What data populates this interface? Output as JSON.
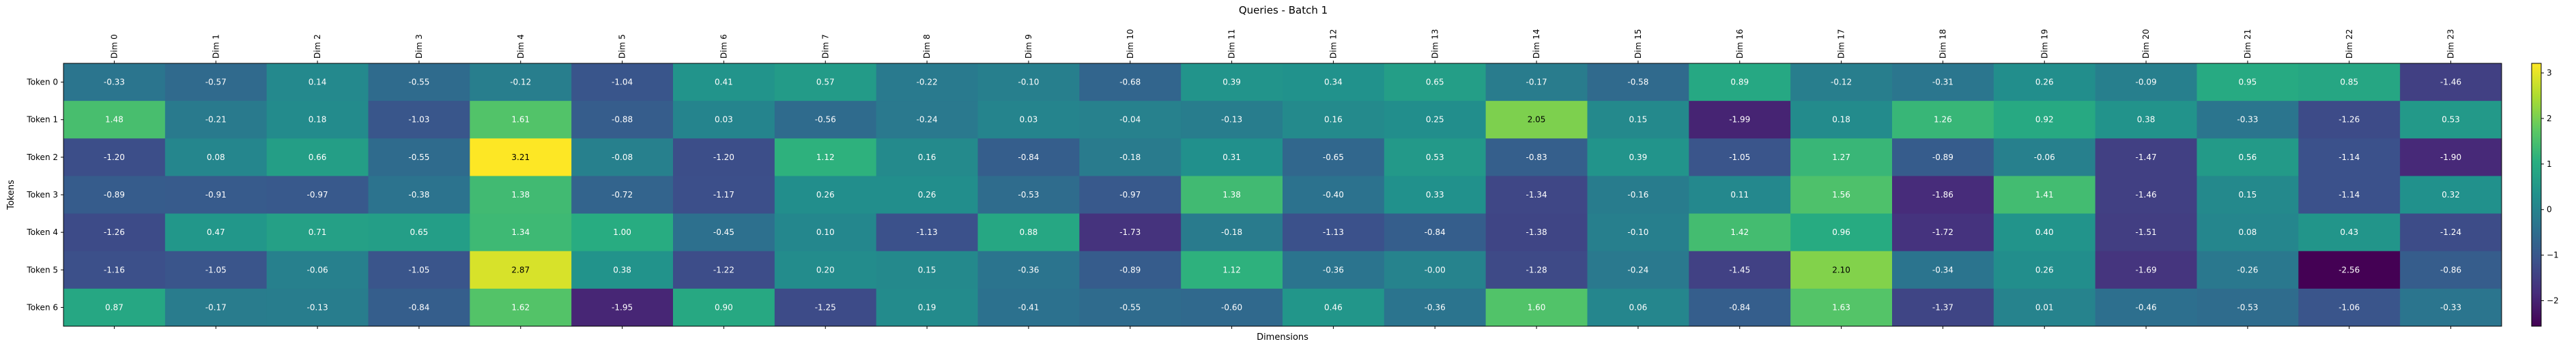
{
  "chart_data": {
    "type": "heatmap",
    "title": "Queries - Batch 1",
    "xlabel": "Dimensions",
    "ylabel": "Tokens",
    "colormap": "viridis",
    "colorbar": {
      "min": -2.56,
      "max": 3.21,
      "ticks": [
        -2,
        -1,
        0,
        1,
        2,
        3
      ]
    },
    "x_categories": [
      "Dim 0",
      "Dim 1",
      "Dim 2",
      "Dim 3",
      "Dim 4",
      "Dim 5",
      "Dim 6",
      "Dim 7",
      "Dim 8",
      "Dim 9",
      "Dim 10",
      "Dim 11",
      "Dim 12",
      "Dim 13",
      "Dim 14",
      "Dim 15",
      "Dim 16",
      "Dim 17",
      "Dim 18",
      "Dim 19",
      "Dim 20",
      "Dim 21",
      "Dim 22",
      "Dim 23"
    ],
    "y_categories": [
      "Token 0",
      "Token 1",
      "Token 2",
      "Token 3",
      "Token 4",
      "Token 5",
      "Token 6"
    ],
    "values": [
      [
        -0.33,
        -0.57,
        0.14,
        -0.55,
        -0.12,
        -1.04,
        0.41,
        0.57,
        -0.22,
        -0.1,
        -0.68,
        0.39,
        0.34,
        0.65,
        -0.17,
        -0.58,
        0.89,
        -0.12,
        -0.31,
        0.26,
        -0.09,
        0.95,
        0.85,
        -1.46
      ],
      [
        1.48,
        -0.21,
        0.18,
        -1.03,
        1.61,
        -0.88,
        0.03,
        -0.56,
        -0.24,
        0.03,
        -0.04,
        -0.13,
        0.16,
        0.25,
        2.05,
        0.15,
        -1.99,
        0.18,
        1.26,
        0.92,
        0.38,
        -0.33,
        -1.26,
        0.53
      ],
      [
        -1.2,
        0.08,
        0.66,
        -0.55,
        3.21,
        -0.08,
        -1.2,
        1.12,
        0.16,
        -0.84,
        -0.18,
        0.31,
        -0.65,
        0.53,
        -0.83,
        0.39,
        -1.05,
        1.27,
        -0.89,
        -0.06,
        -1.47,
        0.56,
        -1.14,
        -1.9
      ],
      [
        -0.89,
        -0.91,
        -0.97,
        -0.38,
        1.38,
        -0.72,
        -1.17,
        0.26,
        0.26,
        -0.53,
        -0.97,
        1.38,
        -0.4,
        0.33,
        -1.34,
        -0.16,
        0.11,
        1.56,
        -1.86,
        1.41,
        -1.46,
        0.15,
        -1.14,
        0.32
      ],
      [
        -1.26,
        0.47,
        0.71,
        0.65,
        1.34,
        1.0,
        -0.45,
        0.1,
        -1.13,
        0.88,
        -1.73,
        -0.18,
        -1.13,
        -0.84,
        -1.38,
        -0.1,
        1.42,
        0.96,
        -1.72,
        0.4,
        -1.51,
        0.08,
        0.43,
        -1.24
      ],
      [
        -1.16,
        -1.05,
        -0.06,
        -1.05,
        2.87,
        0.38,
        -1.22,
        0.2,
        0.15,
        -0.36,
        -0.89,
        1.12,
        -0.36,
        -0.0,
        -1.28,
        -0.24,
        -1.45,
        2.1,
        -0.34,
        0.26,
        -1.69,
        -0.26,
        -2.56,
        -0.86
      ],
      [
        0.87,
        -0.17,
        -0.13,
        -0.84,
        1.62,
        -1.95,
        0.9,
        -1.25,
        0.19,
        -0.41,
        -0.55,
        -0.6,
        0.46,
        -0.36,
        1.6,
        0.06,
        -0.84,
        1.63,
        -1.37,
        0.01,
        -0.46,
        -0.53,
        -1.06,
        -0.33
      ]
    ],
    "value_labels": [
      [
        "-0.33",
        "-0.57",
        "0.14",
        "-0.55",
        "-0.12",
        "-1.04",
        "0.41",
        "0.57",
        "-0.22",
        "-0.10",
        "-0.68",
        "0.39",
        "0.34",
        "0.65",
        "-0.17",
        "-0.58",
        "0.89",
        "-0.12",
        "-0.31",
        "0.26",
        "-0.09",
        "0.95",
        "0.85",
        "-1.46"
      ],
      [
        "1.48",
        "-0.21",
        "0.18",
        "-1.03",
        "1.61",
        "-0.88",
        "0.03",
        "-0.56",
        "-0.24",
        "0.03",
        "-0.04",
        "-0.13",
        "0.16",
        "0.25",
        "2.05",
        "0.15",
        "-1.99",
        "0.18",
        "1.26",
        "0.92",
        "0.38",
        "-0.33",
        "-1.26",
        "0.53"
      ],
      [
        "-1.20",
        "0.08",
        "0.66",
        "-0.55",
        "3.21",
        "-0.08",
        "-1.20",
        "1.12",
        "0.16",
        "-0.84",
        "-0.18",
        "0.31",
        "-0.65",
        "0.53",
        "-0.83",
        "0.39",
        "-1.05",
        "1.27",
        "-0.89",
        "-0.06",
        "-1.47",
        "0.56",
        "-1.14",
        "-1.90"
      ],
      [
        "-0.89",
        "-0.91",
        "-0.97",
        "-0.38",
        "1.38",
        "-0.72",
        "-1.17",
        "0.26",
        "0.26",
        "-0.53",
        "-0.97",
        "1.38",
        "-0.40",
        "0.33",
        "-1.34",
        "-0.16",
        "0.11",
        "1.56",
        "-1.86",
        "1.41",
        "-1.46",
        "0.15",
        "-1.14",
        "0.32"
      ],
      [
        "-1.26",
        "0.47",
        "0.71",
        "0.65",
        "1.34",
        "1.00",
        "-0.45",
        "0.10",
        "-1.13",
        "0.88",
        "-1.73",
        "-0.18",
        "-1.13",
        "-0.84",
        "-1.38",
        "-0.10",
        "1.42",
        "0.96",
        "-1.72",
        "0.40",
        "-1.51",
        "0.08",
        "0.43",
        "-1.24"
      ],
      [
        "-1.16",
        "-1.05",
        "-0.06",
        "-1.05",
        "2.87",
        "0.38",
        "-1.22",
        "0.20",
        "0.15",
        "-0.36",
        "-0.89",
        "1.12",
        "-0.36",
        "-0.00",
        "-1.28",
        "-0.24",
        "-1.45",
        "2.10",
        "-0.34",
        "0.26",
        "-1.69",
        "-0.26",
        "-2.56",
        "-0.86"
      ],
      [
        "0.87",
        "-0.17",
        "-0.13",
        "-0.84",
        "1.62",
        "-1.95",
        "0.90",
        "-1.25",
        "0.19",
        "-0.41",
        "-0.55",
        "-0.60",
        "0.46",
        "-0.36",
        "1.60",
        "0.06",
        "-0.84",
        "1.63",
        "-1.37",
        "0.01",
        "-0.46",
        "-0.53",
        "-1.06",
        "-0.33"
      ]
    ]
  }
}
